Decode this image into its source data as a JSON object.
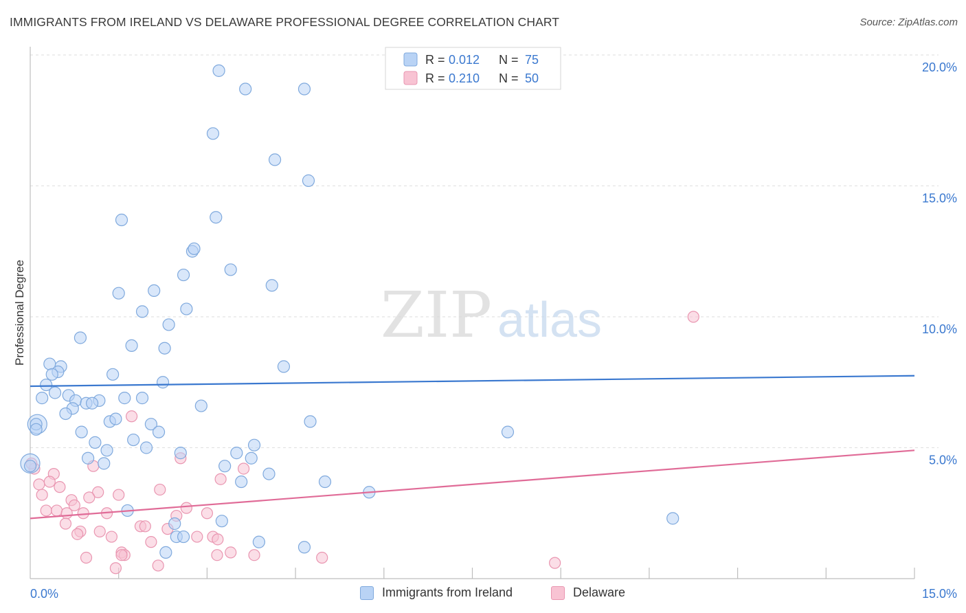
{
  "header": {
    "title": "IMMIGRANTS FROM IRELAND VS DELAWARE PROFESSIONAL DEGREE CORRELATION CHART",
    "source": "Source: ZipAtlas.com"
  },
  "watermark": {
    "zip": "ZIP",
    "atlas": "atlas"
  },
  "legend_top": [
    {
      "r_label": "R =",
      "r_value": "0.012",
      "n_label": "N =",
      "n_value": "75"
    },
    {
      "r_label": "R =",
      "r_value": "0.210",
      "n_label": "N =",
      "n_value": "50"
    }
  ],
  "legend_bottom": [
    {
      "label": "Immigrants from Ireland"
    },
    {
      "label": "Delaware"
    }
  ],
  "colors": {
    "blue_fill": "#b9d3f5",
    "blue_stroke": "#7fa9dd",
    "blue_line": "#3a78cf",
    "pink_fill": "#f8c3d3",
    "pink_stroke": "#e995b0",
    "pink_line": "#e06b97",
    "axis_label": "#3a78cf"
  },
  "chart_data": {
    "type": "scatter",
    "title": "IMMIGRANTS FROM IRELAND VS DELAWARE PROFESSIONAL DEGREE CORRELATION CHART",
    "ylabel": "Professional Degree",
    "xlabel": "",
    "xlim": [
      0,
      15
    ],
    "ylim": [
      0,
      20.5
    ],
    "x_ticks": [
      "0.0%",
      "15.0%"
    ],
    "y_ticks": [
      {
        "value": 5,
        "label": "5.0%"
      },
      {
        "value": 10,
        "label": "10.0%"
      },
      {
        "value": 15,
        "label": "15.0%"
      },
      {
        "value": 20,
        "label": "20.0%"
      }
    ],
    "grid": true,
    "legend_placement": "top-center",
    "series": [
      {
        "name": "Immigrants from Ireland",
        "r": 0.012,
        "n": 75,
        "trend": {
          "x0": 0,
          "y0": 7.35,
          "x1": 15,
          "y1": 7.75
        },
        "points": [
          [
            3.2,
            19.4
          ],
          [
            3.65,
            18.7
          ],
          [
            4.65,
            18.7
          ],
          [
            3.1,
            17.0
          ],
          [
            4.15,
            16.0
          ],
          [
            4.72,
            15.2
          ],
          [
            1.55,
            13.7
          ],
          [
            3.15,
            13.8
          ],
          [
            2.75,
            12.5
          ],
          [
            2.78,
            12.6
          ],
          [
            3.4,
            11.8
          ],
          [
            2.6,
            11.6
          ],
          [
            4.1,
            11.2
          ],
          [
            1.5,
            10.9
          ],
          [
            2.1,
            11.0
          ],
          [
            1.9,
            10.2
          ],
          [
            2.65,
            10.3
          ],
          [
            2.35,
            9.7
          ],
          [
            0.85,
            9.2
          ],
          [
            1.72,
            8.9
          ],
          [
            2.28,
            8.8
          ],
          [
            4.3,
            8.1
          ],
          [
            0.33,
            8.2
          ],
          [
            0.52,
            8.1
          ],
          [
            0.47,
            7.9
          ],
          [
            0.37,
            7.8
          ],
          [
            1.4,
            7.8
          ],
          [
            0.27,
            7.4
          ],
          [
            2.25,
            7.5
          ],
          [
            0.42,
            7.1
          ],
          [
            0.65,
            7.0
          ],
          [
            0.2,
            6.9
          ],
          [
            1.6,
            6.9
          ],
          [
            1.9,
            6.9
          ],
          [
            0.77,
            6.8
          ],
          [
            1.17,
            6.8
          ],
          [
            0.95,
            6.7
          ],
          [
            1.05,
            6.7
          ],
          [
            2.9,
            6.6
          ],
          [
            0.72,
            6.5
          ],
          [
            0.6,
            6.3
          ],
          [
            1.35,
            6.0
          ],
          [
            1.45,
            6.1
          ],
          [
            0.1,
            5.9
          ],
          [
            2.05,
            5.9
          ],
          [
            4.75,
            6.0
          ],
          [
            0.87,
            5.6
          ],
          [
            2.18,
            5.6
          ],
          [
            8.1,
            5.6
          ],
          [
            1.1,
            5.2
          ],
          [
            1.75,
            5.3
          ],
          [
            3.8,
            5.1
          ],
          [
            1.3,
            4.9
          ],
          [
            1.97,
            5.0
          ],
          [
            2.55,
            4.8
          ],
          [
            3.5,
            4.8
          ],
          [
            3.75,
            4.6
          ],
          [
            0.98,
            4.6
          ],
          [
            1.25,
            4.4
          ],
          [
            0.0,
            4.3
          ],
          [
            3.3,
            4.3
          ],
          [
            4.05,
            4.0
          ],
          [
            3.58,
            3.7
          ],
          [
            5.0,
            3.7
          ],
          [
            5.75,
            3.3
          ],
          [
            1.65,
            2.6
          ],
          [
            2.45,
            2.1
          ],
          [
            3.25,
            2.2
          ],
          [
            10.9,
            2.3
          ],
          [
            2.48,
            1.6
          ],
          [
            2.6,
            1.6
          ],
          [
            3.88,
            1.4
          ],
          [
            4.65,
            1.2
          ],
          [
            2.3,
            1.0
          ],
          [
            0.1,
            5.7
          ]
        ],
        "large_points": [
          [
            0.0,
            4.4
          ],
          [
            0.12,
            5.9
          ]
        ]
      },
      {
        "name": "Delaware",
        "r": 0.21,
        "n": 50,
        "trend": {
          "x0": 0,
          "y0": 2.3,
          "x1": 15,
          "y1": 4.9
        },
        "points": [
          [
            11.25,
            10.0
          ],
          [
            1.72,
            6.2
          ],
          [
            0.07,
            4.2
          ],
          [
            0.4,
            4.0
          ],
          [
            1.07,
            4.3
          ],
          [
            2.55,
            4.6
          ],
          [
            3.62,
            4.2
          ],
          [
            3.23,
            3.8
          ],
          [
            0.33,
            3.7
          ],
          [
            0.15,
            3.6
          ],
          [
            0.5,
            3.5
          ],
          [
            2.2,
            3.4
          ],
          [
            1.15,
            3.3
          ],
          [
            1.5,
            3.2
          ],
          [
            0.2,
            3.2
          ],
          [
            1.0,
            3.1
          ],
          [
            0.7,
            3.0
          ],
          [
            0.75,
            2.8
          ],
          [
            2.65,
            2.7
          ],
          [
            0.27,
            2.6
          ],
          [
            0.45,
            2.6
          ],
          [
            0.62,
            2.5
          ],
          [
            0.9,
            2.5
          ],
          [
            1.3,
            2.5
          ],
          [
            2.48,
            2.4
          ],
          [
            3.0,
            2.5
          ],
          [
            0.6,
            2.1
          ],
          [
            1.87,
            2.0
          ],
          [
            1.95,
            2.0
          ],
          [
            2.33,
            1.9
          ],
          [
            0.85,
            1.8
          ],
          [
            1.18,
            1.8
          ],
          [
            0.8,
            1.7
          ],
          [
            1.38,
            1.6
          ],
          [
            2.83,
            1.6
          ],
          [
            3.1,
            1.6
          ],
          [
            3.18,
            1.5
          ],
          [
            2.05,
            1.4
          ],
          [
            3.4,
            1.0
          ],
          [
            1.55,
            1.0
          ],
          [
            1.6,
            0.9
          ],
          [
            3.17,
            0.9
          ],
          [
            3.8,
            0.9
          ],
          [
            0.95,
            0.8
          ],
          [
            4.95,
            0.8
          ],
          [
            8.9,
            0.6
          ],
          [
            2.17,
            0.5
          ],
          [
            1.45,
            0.4
          ],
          [
            0.02,
            4.4
          ],
          [
            1.55,
            0.9
          ]
        ]
      }
    ]
  }
}
